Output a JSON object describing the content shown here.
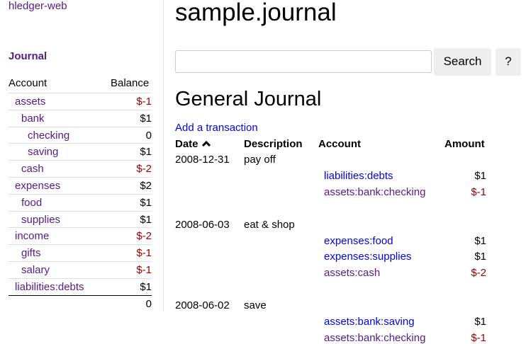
{
  "sidebar": {
    "app_link": "hledger-web",
    "journal_link": "Journal",
    "header": {
      "account": "Account",
      "balance": "Balance"
    },
    "accounts": [
      {
        "name": "assets",
        "balance": "$-1",
        "level": 1,
        "negative": true
      },
      {
        "name": "bank",
        "balance": "$1",
        "level": 2,
        "negative": false
      },
      {
        "name": "checking",
        "balance": "0",
        "level": 3,
        "negative": false
      },
      {
        "name": "saving",
        "balance": "$1",
        "level": 3,
        "negative": false
      },
      {
        "name": "cash",
        "balance": "$-2",
        "level": 2,
        "negative": true
      },
      {
        "name": "expenses",
        "balance": "$2",
        "level": 1,
        "negative": false
      },
      {
        "name": "food",
        "balance": "$1",
        "level": 2,
        "negative": false
      },
      {
        "name": "supplies",
        "balance": "$1",
        "level": 2,
        "negative": false
      },
      {
        "name": "income",
        "balance": "$-2",
        "level": 1,
        "negative": true
      },
      {
        "name": "gifts",
        "balance": "$-1",
        "level": 2,
        "negative": true
      },
      {
        "name": "salary",
        "balance": "$-1",
        "level": 2,
        "negative": true
      },
      {
        "name": "liabilities:debts",
        "balance": "$1",
        "level": 1,
        "negative": false
      }
    ],
    "total": "0"
  },
  "main": {
    "title": "sample.journal",
    "search": {
      "value": "",
      "placeholder": "",
      "button": "Search",
      "help": "?"
    },
    "heading": "General Journal",
    "add_link": "Add a transaction",
    "columns": {
      "date": "Date",
      "description": "Description",
      "account": "Account",
      "amount": "Amount"
    },
    "sort_icon": "chevron-up-icon",
    "transactions": [
      {
        "date": "2008-12-31",
        "description": "pay off",
        "postings": [
          {
            "account": "liabilities:debts",
            "amount": "$1",
            "visited": false,
            "negative": false
          },
          {
            "account": "assets:bank:checking",
            "amount": "$-1",
            "visited": true,
            "negative": true
          }
        ]
      },
      {
        "date": "2008-06-03",
        "description": "eat & shop",
        "postings": [
          {
            "account": "expenses:food",
            "amount": "$1",
            "visited": false,
            "negative": false
          },
          {
            "account": "expenses:supplies",
            "amount": "$1",
            "visited": false,
            "negative": false
          },
          {
            "account": "assets:cash",
            "amount": "$-2",
            "visited": true,
            "negative": true
          }
        ]
      },
      {
        "date": "2008-06-02",
        "description": "save",
        "postings": [
          {
            "account": "assets:bank:saving",
            "amount": "$1",
            "visited": false,
            "negative": false
          },
          {
            "account": "assets:bank:checking",
            "amount": "$-1",
            "visited": true,
            "negative": true
          }
        ]
      }
    ]
  },
  "colors": {
    "visited": "#551a8b",
    "link": "#0000ee",
    "negative": "#a00000"
  }
}
